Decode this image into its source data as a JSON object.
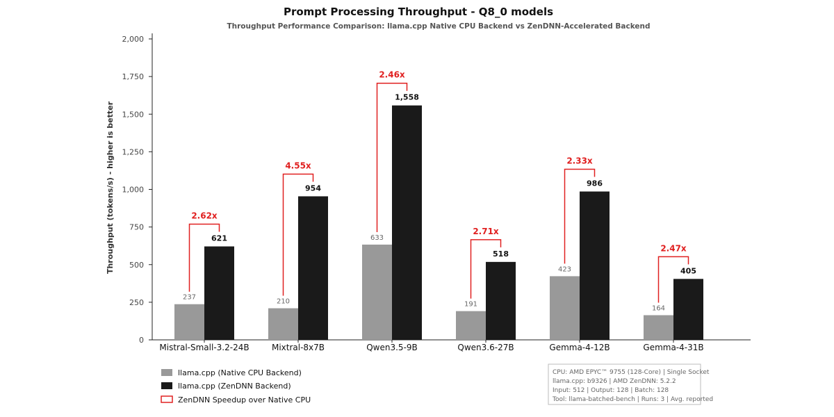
{
  "chart_data": {
    "type": "bar",
    "title": "Prompt Processing Throughput - Q8_0 models",
    "subtitle": "Throughput Performance Comparison: llama.cpp Native CPU Backend vs ZenDNN-Accelerated Backend",
    "ylabel": "Throughput (tokens/s) - higher is better",
    "xlabel": "",
    "ylim": [
      0,
      2000
    ],
    "yticks": [
      "0",
      "250",
      "500",
      "750",
      "1,000",
      "1,250",
      "1,500",
      "1,750",
      "2,000"
    ],
    "ytick_values": [
      0,
      250,
      500,
      750,
      1000,
      1250,
      1500,
      1750,
      2000
    ],
    "grid": false,
    "legend_position": "bottom-left",
    "categories": [
      "Mistral-Small-3.2-24B",
      "Mixtral-8x7B",
      "Qwen3.5-9B",
      "Qwen3.6-27B",
      "Gemma-4-12B",
      "Gemma-4-31B"
    ],
    "series": [
      {
        "name": "llama.cpp (Native CPU Backend)",
        "values": [
          237,
          210,
          633,
          191,
          423,
          164
        ],
        "labels": [
          "237",
          "210",
          "633",
          "191",
          "423",
          "164"
        ],
        "color": "#999999"
      },
      {
        "name": "llama.cpp (ZenDNN Backend)",
        "values": [
          621,
          954,
          1558,
          518,
          986,
          405
        ],
        "labels": [
          "621",
          "954",
          "1,558",
          "518",
          "986",
          "405"
        ],
        "color": "#1a1a1a"
      }
    ],
    "speedups": [
      "2.62x",
      "4.55x",
      "2.46x",
      "2.71x",
      "2.33x",
      "2.47x"
    ],
    "speedup_legend": "ZenDNN Speedup over Native CPU",
    "speedup_color": "#e02020",
    "notes": [
      "CPU: AMD EPYC™ 9755 (128-Core) | Single Socket",
      "llama.cpp: b9326 | AMD ZenDNN: 5.2.2",
      "Input: 512 | Output: 128 | Batch: 128",
      "Tool: llama-batched-bench | Runs: 3 | Avg. reported"
    ]
  }
}
